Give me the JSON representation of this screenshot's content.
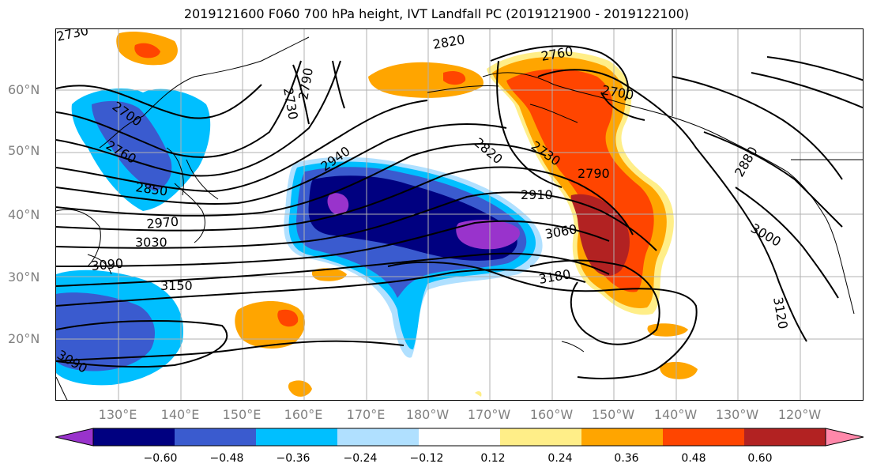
{
  "title": "2019121600 F060 700 hPa height, IVT Landfall PC (2019121900 - 2019122100)",
  "map": {
    "lat_labels": [
      "60°N",
      "50°N",
      "40°N",
      "30°N",
      "20°N"
    ],
    "lon_labels": [
      "130°E",
      "140°E",
      "150°E",
      "160°E",
      "170°E",
      "180°W",
      "170°W",
      "160°W",
      "150°W",
      "140°W",
      "130°W",
      "120°W"
    ],
    "contour_labels": [
      "2730",
      "2820",
      "2760",
      "2700",
      "2730",
      "2790",
      "2700",
      "2760",
      "2850",
      "2940",
      "2820",
      "2730",
      "2790",
      "2910",
      "2880",
      "2970",
      "3030",
      "3060",
      "3000",
      "3090",
      "3150",
      "3180",
      "3120",
      "3090"
    ]
  },
  "colorbar": {
    "ticks": [
      "−0.60",
      "−0.48",
      "−0.36",
      "−0.24",
      "−0.12",
      "0.12",
      "0.24",
      "0.36",
      "0.48",
      "0.60"
    ],
    "colors": [
      "#9933cc",
      "#000080",
      "#3a5bcf",
      "#00bfff",
      "#b0e0ff",
      "#ffffff",
      "#ffee88",
      "#ffa500",
      "#ff4500",
      "#b22222",
      "#ff88aa"
    ]
  },
  "colors": {
    "purple": "#9933cc",
    "navy": "#000080",
    "blue": "#3a5bcf",
    "cyan": "#00bfff",
    "lightblue": "#b0e0ff",
    "yellow": "#ffee88",
    "orange": "#ffa500",
    "redorange": "#ff4500",
    "darkred": "#b22222",
    "grid": "#b0b0b0"
  }
}
